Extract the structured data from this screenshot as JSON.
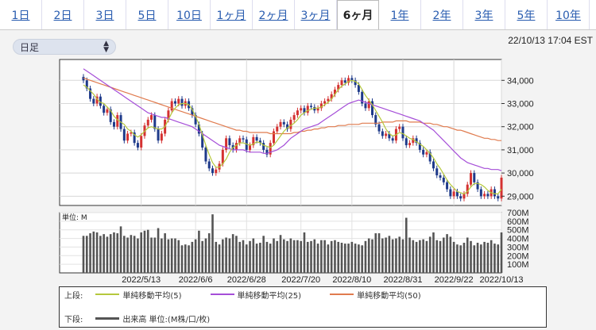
{
  "tabs": [
    {
      "label": "1日"
    },
    {
      "label": "2日"
    },
    {
      "label": "3日"
    },
    {
      "label": "5日"
    },
    {
      "label": "10日"
    },
    {
      "label": "1ヶ月"
    },
    {
      "label": "2ヶ月"
    },
    {
      "label": "3ヶ月"
    },
    {
      "label": "6ヶ月",
      "active": true
    },
    {
      "label": "1年"
    },
    {
      "label": "2年"
    },
    {
      "label": "3年"
    },
    {
      "label": "5年"
    },
    {
      "label": "10年"
    }
  ],
  "controls": {
    "interval_select": "日足"
  },
  "timestamp": "22/10/13 17:04 EST",
  "legend": {
    "upper_label": "上段:",
    "sma5": "単純移動平均(5)",
    "sma25": "単純移動平均(25)",
    "sma50": "単純移動平均(50)",
    "lower_label": "下段:",
    "volume": "出来高 単位:(M株/口/枚)"
  },
  "colors": {
    "up": "#d43131",
    "down": "#1e3a8a",
    "sma5": "#b5c83c",
    "sma25": "#a54ed8",
    "sma50": "#e07b4e",
    "volume": "#555555"
  },
  "chart_data": {
    "type": "candlestick",
    "x_tick_labels": [
      "2022/5/13",
      "2022/6/6",
      "2022/6/28",
      "2022/7/20",
      "2022/8/10",
      "2022/8/31",
      "2022/9/22",
      "2022/10/13"
    ],
    "price_axis": {
      "ticks": [
        29000,
        30000,
        31000,
        32000,
        33000,
        34000
      ],
      "ylim": [
        28600,
        34900
      ],
      "position": "right"
    },
    "volume_axis": {
      "ticks": [
        "100M",
        "200M",
        "300M",
        "400M",
        "500M",
        "600M",
        "700M"
      ],
      "ylim": [
        0,
        700
      ],
      "unit_label": "単位: M"
    },
    "closes": [
      34000,
      33650,
      33200,
      33000,
      33300,
      32900,
      32600,
      32750,
      32200,
      32000,
      32500,
      31900,
      31400,
      31700,
      31750,
      31300,
      31100,
      31600,
      32050,
      32300,
      32500,
      31900,
      31400,
      31700,
      32300,
      32700,
      33100,
      33000,
      33200,
      32900,
      33100,
      32800,
      32500,
      32100,
      31700,
      31100,
      30500,
      30200,
      30000,
      30150,
      30400,
      31000,
      31500,
      31200,
      31000,
      31300,
      31500,
      31450,
      31000,
      31200,
      31550,
      31400,
      31300,
      31000,
      30800,
      31300,
      31800,
      32000,
      32200,
      32100,
      31900,
      32300,
      32500,
      32700,
      32800,
      32600,
      32900,
      32850,
      32700,
      32800,
      33000,
      33100,
      33200,
      33400,
      33600,
      33800,
      34000,
      33900,
      34100,
      34000,
      33800,
      33500,
      33000,
      32800,
      33100,
      32500,
      32100,
      31800,
      31600,
      31700,
      31500,
      31400,
      31900,
      32000,
      31500,
      31200,
      31300,
      31500,
      31300,
      31000,
      30800,
      30900,
      30500,
      30200,
      29900,
      29800,
      29600,
      29300,
      29000,
      29200,
      29000,
      28900,
      29100,
      29500,
      30000,
      29600,
      29300,
      29000,
      29100,
      29000,
      29300,
      29000,
      28900,
      29800
    ],
    "volumes": [
      430,
      430,
      460,
      480,
      470,
      430,
      450,
      420,
      450,
      470,
      460,
      540,
      430,
      410,
      440,
      430,
      400,
      470,
      490,
      500,
      410,
      410,
      520,
      400,
      460,
      390,
      400,
      400,
      380,
      320,
      330,
      320,
      360,
      390,
      490,
      370,
      400,
      460,
      680,
      360,
      330,
      390,
      410,
      400,
      450,
      430,
      360,
      380,
      330,
      370,
      400,
      340,
      350,
      430,
      360,
      340,
      400,
      370,
      440,
      390,
      370,
      400,
      380,
      380,
      370,
      470,
      360,
      370,
      390,
      340,
      380,
      380,
      330,
      370,
      380,
      360,
      350,
      340,
      340,
      360,
      340,
      330,
      320,
      370,
      400,
      390,
      460,
      460,
      400,
      410,
      430,
      390,
      400,
      420,
      390,
      640,
      410,
      380,
      360,
      380,
      390,
      370,
      420,
      470,
      380,
      370,
      410,
      450,
      420,
      360,
      330,
      320,
      350,
      410,
      370,
      320,
      350,
      330,
      360,
      350,
      380,
      340,
      330,
      470
    ],
    "sma5": [
      33800,
      33700,
      33550,
      33400,
      33200,
      33050,
      33000,
      32850,
      32700,
      32450,
      32300,
      32200,
      32100,
      31900,
      31800,
      31650,
      31550,
      31650,
      31800,
      31950,
      32000,
      31950,
      31900,
      31900,
      32000,
      32300,
      32600,
      32800,
      32950,
      33000,
      33000,
      32950,
      32750,
      32450,
      32100,
      31650,
      31200,
      30800,
      30450,
      30250,
      30250,
      30400,
      30600,
      30900,
      31100,
      31200,
      31300,
      31300,
      31250,
      31200,
      31250,
      31350,
      31300,
      31200,
      31150,
      31100,
      31200,
      31400,
      31600,
      31800,
      31950,
      32050,
      32150,
      32300,
      32500,
      32600,
      32700,
      32750,
      32800,
      32800,
      32850,
      32950,
      33050,
      33200,
      33400,
      33600,
      33750,
      33850,
      33950,
      34000,
      33950,
      33850,
      33600,
      33350,
      33150,
      32950,
      32700,
      32450,
      32200,
      31900,
      31700,
      31600,
      31650,
      31750,
      31700,
      31600,
      31500,
      31450,
      31350,
      31250,
      31150,
      31000,
      30850,
      30650,
      30400,
      30200,
      29950,
      29700,
      29500,
      29350,
      29200,
      29150,
      29100,
      29200,
      29400,
      29550,
      29550,
      29500,
      29400,
      29250,
      29150,
      29100,
      29100,
      29300
    ],
    "sma25": [
      34500,
      34400,
      34300,
      34200,
      34100,
      34000,
      33900,
      33800,
      33700,
      33600,
      33500,
      33400,
      33300,
      33200,
      33100,
      33000,
      32900,
      32800,
      32700,
      32600,
      32550,
      32500,
      32450,
      32400,
      32400,
      32350,
      32300,
      32250,
      32200,
      32150,
      32100,
      32050,
      32000,
      31900,
      31800,
      31700,
      31600,
      31500,
      31400,
      31300,
      31200,
      31150,
      31100,
      31050,
      31000,
      31000,
      31000,
      31000,
      30950,
      30900,
      30900,
      30900,
      30900,
      30850,
      30850,
      30900,
      30950,
      31000,
      31100,
      31200,
      31350,
      31500,
      31600,
      31700,
      31800,
      31900,
      31950,
      32000,
      32050,
      32100,
      32200,
      32300,
      32400,
      32500,
      32600,
      32700,
      32800,
      32900,
      33000,
      33050,
      33100,
      33150,
      33100,
      33050,
      33000,
      32950,
      32900,
      32850,
      32800,
      32750,
      32700,
      32650,
      32600,
      32550,
      32500,
      32450,
      32400,
      32350,
      32300,
      32250,
      32150,
      32050,
      31950,
      31850,
      31700,
      31550,
      31400,
      31250,
      31100,
      30950,
      30800,
      30650,
      30550,
      30450,
      30400,
      30350,
      30300,
      30250,
      30200,
      30200,
      30150,
      30150,
      30150,
      30100
    ],
    "sma50": [
      34100,
      34050,
      34000,
      33950,
      33900,
      33850,
      33800,
      33750,
      33700,
      33650,
      33600,
      33550,
      33500,
      33450,
      33400,
      33350,
      33300,
      33250,
      33200,
      33150,
      33100,
      33050,
      33000,
      32950,
      32900,
      32850,
      32800,
      32750,
      32700,
      32650,
      32600,
      32550,
      32500,
      32450,
      32400,
      32350,
      32300,
      32250,
      32200,
      32150,
      32100,
      32050,
      32000,
      31950,
      31900,
      31850,
      31850,
      31800,
      31800,
      31750,
      31750,
      31750,
      31750,
      31750,
      31750,
      31700,
      31700,
      31700,
      31700,
      31700,
      31700,
      31700,
      31750,
      31750,
      31800,
      31800,
      31850,
      31850,
      31900,
      31900,
      31950,
      31950,
      32000,
      32000,
      32000,
      32050,
      32050,
      32050,
      32100,
      32100,
      32100,
      32100,
      32150,
      32150,
      32150,
      32150,
      32150,
      32150,
      32200,
      32200,
      32200,
      32200,
      32250,
      32250,
      32250,
      32250,
      32200,
      32200,
      32200,
      32200,
      32150,
      32150,
      32150,
      32100,
      32100,
      32050,
      32000,
      32000,
      31950,
      31900,
      31850,
      31850,
      31800,
      31750,
      31700,
      31650,
      31600,
      31550,
      31500,
      31500,
      31450,
      31450,
      31400,
      31400
    ]
  }
}
